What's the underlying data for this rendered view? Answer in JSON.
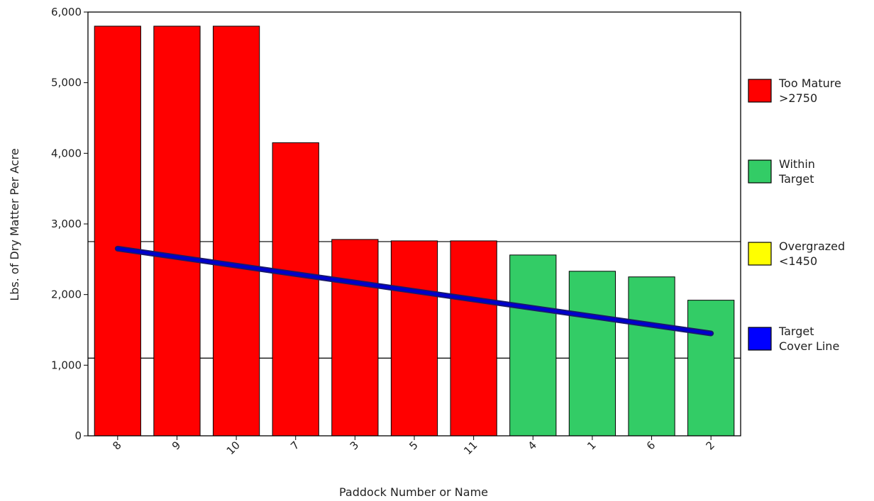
{
  "chart_data": {
    "type": "bar",
    "title": "",
    "xlabel": "Paddock Number or Name",
    "ylabel": "Lbs. of Dry Matter Per Acre",
    "ylim": [
      0,
      6000
    ],
    "yticks": [
      0,
      1000,
      2000,
      3000,
      4000,
      5000,
      6000
    ],
    "ytick_labels": [
      "0",
      "1,000",
      "2,000",
      "3,000",
      "4,000",
      "5,000",
      "6,000"
    ],
    "categories": [
      "8",
      "9",
      "10",
      "7",
      "3",
      "5",
      "11",
      "4",
      "1",
      "6",
      "2"
    ],
    "values": [
      5800,
      5800,
      5800,
      4150,
      2780,
      2760,
      2760,
      2560,
      2330,
      2250,
      1920
    ],
    "bar_groups": [
      "too_mature",
      "too_mature",
      "too_mature",
      "too_mature",
      "too_mature",
      "too_mature",
      "too_mature",
      "within_target",
      "within_target",
      "within_target",
      "within_target"
    ],
    "reference_lines": [
      2750,
      1100
    ],
    "target_cover_line": {
      "start": 2650,
      "end": 1450
    },
    "grid": false,
    "legend_position": "right",
    "legend": [
      {
        "key": "too_mature",
        "label_lines": [
          "Too Mature",
          ">2750"
        ],
        "color": "#ff0000"
      },
      {
        "key": "within_target",
        "label_lines": [
          "Within",
          "Target"
        ],
        "color": "#33cc66"
      },
      {
        "key": "overgrazed",
        "label_lines": [
          "Overgrazed",
          "<1450"
        ],
        "color": "#ffff00"
      },
      {
        "key": "target_line",
        "label_lines": [
          "Target",
          "Cover Line"
        ],
        "color": "#0000ff"
      }
    ],
    "colors": {
      "too_mature": "#ff0000",
      "within_target": "#33cc66",
      "overgrazed": "#ffff00",
      "target_line": "#0000cc",
      "target_line_outline": "#1a1a66"
    }
  }
}
